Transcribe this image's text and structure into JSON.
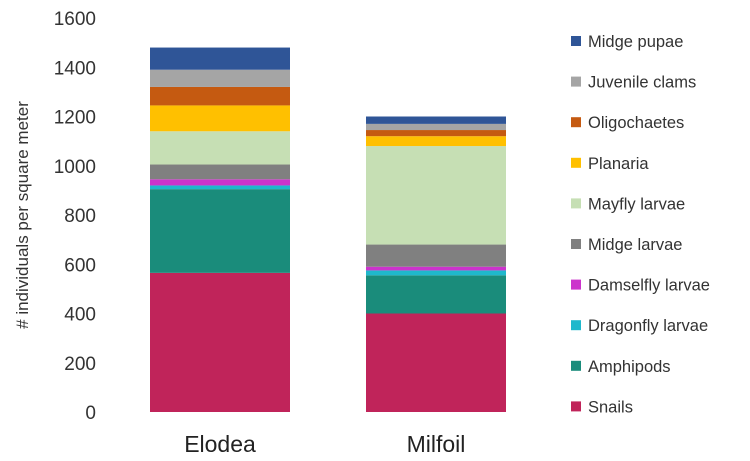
{
  "chart_data": {
    "type": "bar",
    "stacked": true,
    "title": "",
    "xlabel": "",
    "ylabel": "# individuals per square meter",
    "ylim": [
      0,
      1600
    ],
    "yticks": [
      0,
      200,
      400,
      600,
      800,
      1000,
      1200,
      1400,
      1600
    ],
    "categories": [
      "Elodea",
      "Milfoil"
    ],
    "grid": false,
    "legend_position": "right",
    "legend_order": "reverse",
    "series": [
      {
        "name": "Snails",
        "color": "#c0245a",
        "values": [
          565,
          400
        ]
      },
      {
        "name": "Amphipods",
        "color": "#1a8c7b",
        "values": [
          340,
          155
        ]
      },
      {
        "name": "Dragonfly larvae",
        "color": "#1fb8cc",
        "values": [
          15,
          20
        ]
      },
      {
        "name": "Damselfly larvae",
        "color": "#cc33cc",
        "values": [
          25,
          15
        ]
      },
      {
        "name": "Midge larvae",
        "color": "#808080",
        "values": [
          60,
          90
        ]
      },
      {
        "name": "Mayfly larvae",
        "color": "#c6dfb4",
        "values": [
          135,
          400
        ]
      },
      {
        "name": "Planaria",
        "color": "#ffc000",
        "values": [
          105,
          40
        ]
      },
      {
        "name": "Oligochaetes",
        "color": "#c55a11",
        "values": [
          75,
          25
        ]
      },
      {
        "name": "Juvenile clams",
        "color": "#a5a5a5",
        "values": [
          70,
          25
        ]
      },
      {
        "name": "Midge pupae",
        "color": "#2f5597",
        "values": [
          90,
          30
        ]
      }
    ]
  }
}
